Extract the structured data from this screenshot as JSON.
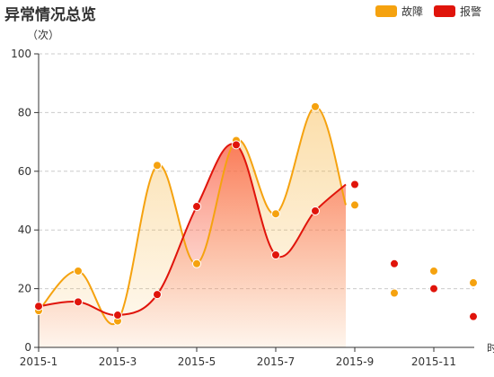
{
  "chart_data": {
    "type": "line",
    "title": "异常情况总览",
    "ylabel": "（次）",
    "xlabel": "时",
    "ylim": [
      0,
      100
    ],
    "yticks": [
      0,
      20,
      40,
      60,
      80,
      100
    ],
    "xticks": [
      "2015-1",
      "2015-3",
      "2015-5",
      "2015-7",
      "2015-9",
      "2015-11"
    ],
    "grid": true,
    "legend_position": "top-right",
    "x": [
      "2015-1",
      "2015-2",
      "2015-3",
      "2015-4",
      "2015-5",
      "2015-6",
      "2015-7",
      "2015-8",
      "2015-9",
      "2015-10",
      "2015-11",
      "2015-12"
    ],
    "series": [
      {
        "name": "故障",
        "color": "#f5a20f",
        "values": [
          12.5,
          26,
          9,
          62,
          28.5,
          70.5,
          45.5,
          82,
          48.5,
          18.5,
          26,
          22
        ]
      },
      {
        "name": "报警",
        "color": "#e0140b",
        "values": [
          14,
          15.5,
          11,
          18,
          48,
          69,
          31.5,
          46.5,
          55.5,
          28.5,
          20,
          10.5
        ]
      }
    ],
    "line_points": 8
  }
}
